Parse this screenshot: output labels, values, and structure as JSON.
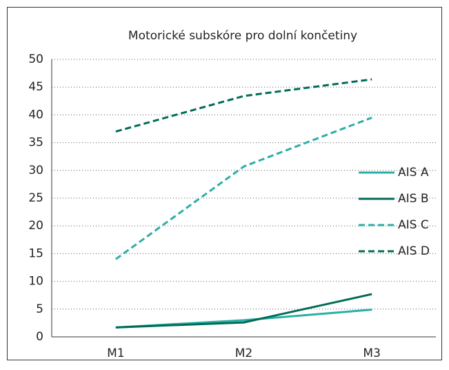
{
  "chart_data": {
    "type": "line",
    "title": "Motorické subskóre pro dolní končetiny",
    "categories": [
      "M1",
      "M2",
      "M3"
    ],
    "series": [
      {
        "name": "AIS A",
        "color": "#2aaea6",
        "dash": false,
        "values": [
          1.7,
          3.0,
          4.9
        ]
      },
      {
        "name": "AIS B",
        "color": "#006b55",
        "dash": false,
        "values": [
          1.7,
          2.6,
          7.7
        ]
      },
      {
        "name": "AIS C",
        "color": "#2aaea6",
        "dash": true,
        "values": [
          14,
          30.7,
          39.5
        ]
      },
      {
        "name": "AIS D",
        "color": "#006b55",
        "dash": true,
        "values": [
          37,
          43.4,
          46.4
        ]
      }
    ],
    "ylim": [
      0,
      50
    ],
    "yticks": [
      0,
      5,
      10,
      15,
      20,
      25,
      30,
      35,
      40,
      45,
      50
    ],
    "grid": true,
    "legend": "right"
  }
}
